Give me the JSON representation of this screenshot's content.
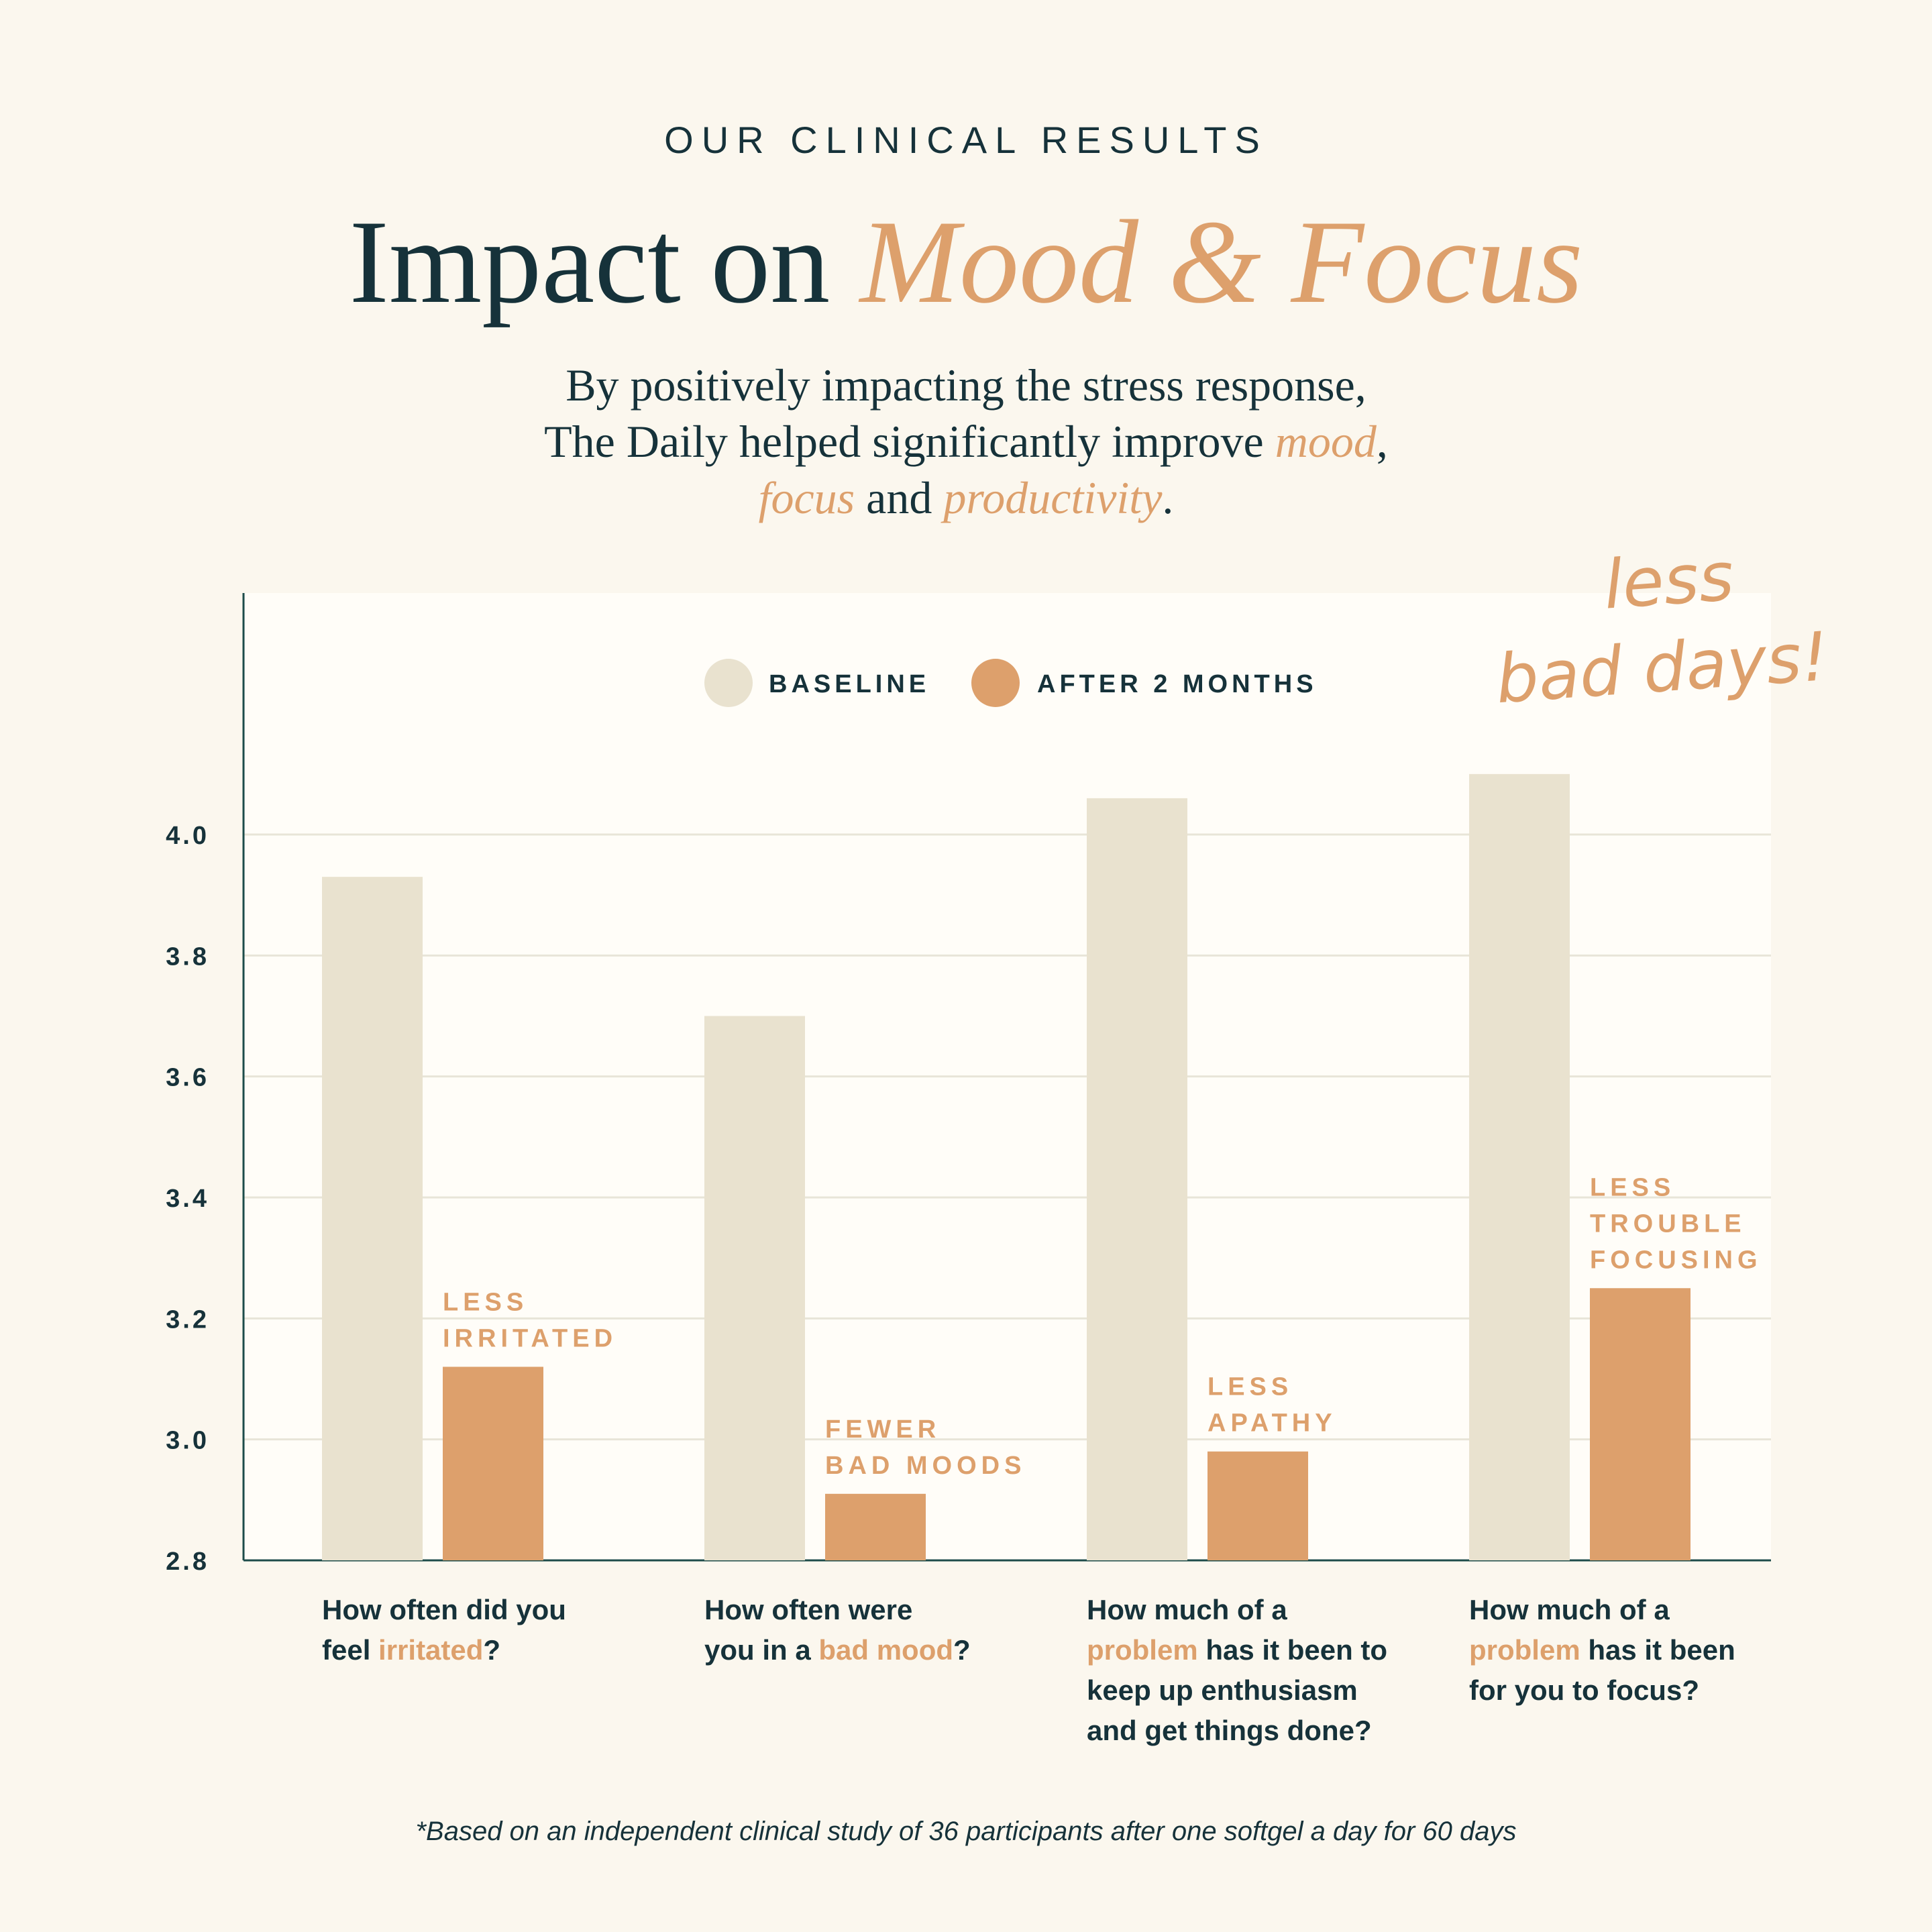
{
  "header": {
    "eyebrow": "OUR CLINICAL RESULTS",
    "title_main": "Impact on ",
    "title_accent": "Mood & Focus",
    "subtitle_line1": "By positively impacting the stress response,",
    "subtitle_line2_pre": "The Daily helped significantly improve ",
    "subtitle_line2_accent": "mood",
    "subtitle_line2_post": ",",
    "subtitle_line3_accent1": "focus",
    "subtitle_line3_mid": " and ",
    "subtitle_line3_accent2": "productivity",
    "subtitle_line3_post": "."
  },
  "colors": {
    "baseline": "#e9e2cf",
    "after": "#dda06c",
    "text": "#16323a",
    "background": "#fbf7ee",
    "plot_background": "#fffdf8"
  },
  "callout": {
    "line1": "less",
    "line2": "bad days!"
  },
  "questions": [
    {
      "parts": [
        "How often did you",
        "feel ",
        "irritated",
        "?"
      ]
    },
    {
      "parts": [
        "How often were",
        "you in a ",
        "bad mood",
        "?"
      ]
    },
    {
      "parts": [
        "How much of a",
        "problem",
        " has it been to",
        "keep up enthusiasm",
        "and get things done?"
      ]
    },
    {
      "parts": [
        "How much of a",
        "problem",
        " has it been",
        "for you to focus?"
      ]
    }
  ],
  "footnote": "*Based on an independent clinical study of 36 participants after one softgel a day for 60 days",
  "chart_data": {
    "type": "bar",
    "categories": [
      "How often did you feel irritated?",
      "How often were you in a bad mood?",
      "How much of a problem has it been to keep up enthusiasm and get things done?",
      "How much of a problem has it been for you to focus?"
    ],
    "series": [
      {
        "name": "BASELINE",
        "values": [
          3.93,
          3.7,
          4.06,
          4.1
        ]
      },
      {
        "name": "AFTER 2 MONTHS",
        "values": [
          3.12,
          2.91,
          2.98,
          3.25
        ]
      }
    ],
    "bar_labels": [
      [
        "LESS",
        "IRRITATED"
      ],
      [
        "FEWER",
        "BAD MOODS"
      ],
      [
        "LESS",
        "APATHY"
      ],
      [
        "LESS",
        "TROUBLE",
        "FOCUSING"
      ]
    ],
    "ylim": [
      2.8,
      4.4
    ],
    "yticks": [
      "4.0",
      "3.8",
      "3.6",
      "3.4",
      "3.2",
      "3.0",
      "2.8"
    ],
    "grid": true,
    "legend_position": "top-center"
  }
}
